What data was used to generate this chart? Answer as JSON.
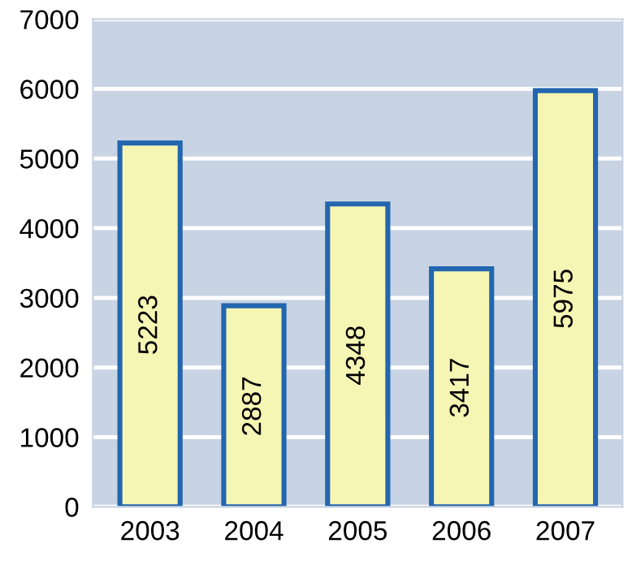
{
  "chart_data": {
    "type": "bar",
    "categories": [
      "2003",
      "2004",
      "2005",
      "2006",
      "2007"
    ],
    "values": [
      5223,
      2887,
      4348,
      3417,
      5975
    ],
    "color": "#f5f6b4",
    "ylim": [
      0,
      7000
    ],
    "yticks": [
      0,
      1000,
      2000,
      3000,
      4000,
      5000,
      6000,
      7000
    ],
    "grid": "y",
    "data_labels": true
  }
}
